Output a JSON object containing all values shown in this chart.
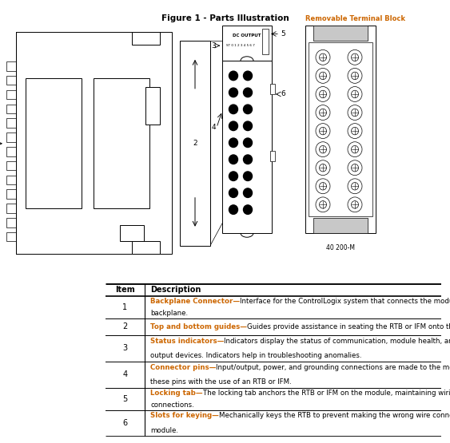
{
  "title": "Figure 1 - Parts Illustration",
  "title_fontsize": 7.5,
  "title_color": "#000000",
  "table_header": [
    "Item",
    "Description"
  ],
  "table_rows": [
    [
      "1",
      "Backplane Connector—Interface for the ControlLogix system that connects the module to the\nbackplane."
    ],
    [
      "2",
      "Top and bottom guides—Guides provide assistance in seating the RTB or IFM onto the module."
    ],
    [
      "3",
      "Status indicators—Indicators display the status of communication, module health, and input/\noutput devices. Indicators help in troubleshooting anomalies."
    ],
    [
      "4",
      "Connector pins—Input/output, power, and grounding connections are made to the module through\nthese pins with the use of an RTB or IFM."
    ],
    [
      "5",
      "Locking tab—The locking tab anchors the RTB or IFM on the module, maintaining wiring\nconnections."
    ],
    [
      "6",
      "Slots for keying—Mechanically keys the RTB to prevent making the wrong wire connections to your\nmodule."
    ]
  ],
  "bold_color": "#CC6600",
  "normal_color": "#000000",
  "bg_color": "#ffffff",
  "removable_terminal_label": "Removable Terminal Block",
  "figure_num_label": "40 200-M"
}
